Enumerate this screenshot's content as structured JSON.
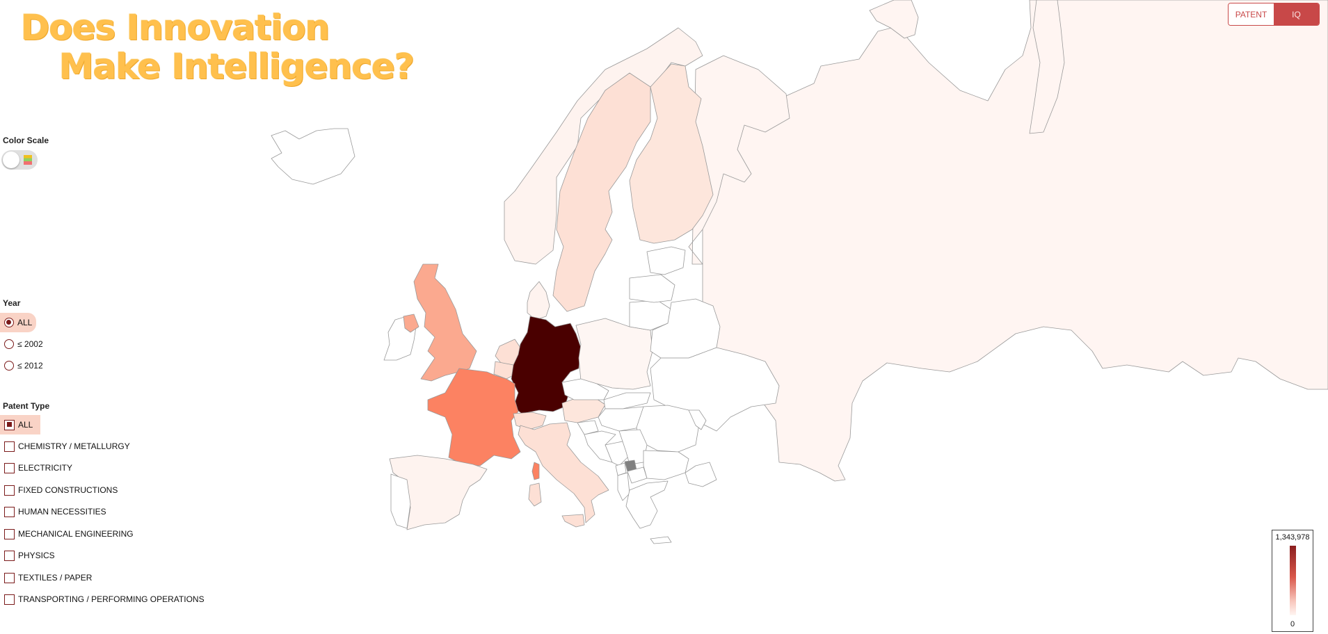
{
  "title": {
    "line1": "Does Innovation",
    "line2": "Make Intelligence?"
  },
  "color_scale": {
    "label": "Color Scale",
    "enabled": false,
    "icon": "palette-swatch-icon"
  },
  "year": {
    "label": "Year",
    "selected": "ALL",
    "options": [
      "ALL",
      "≤ 2002",
      "≤ 2012"
    ]
  },
  "patent_type": {
    "label": "Patent Type",
    "selected": "ALL",
    "options": [
      "ALL",
      "CHEMISTRY / METALLURGY",
      "ELECTRICITY",
      "FIXED CONSTRUCTIONS",
      "HUMAN NECESSITIES",
      "MECHANICAL ENGINEERING",
      "PHYSICS",
      "TEXTILES / PAPER",
      "TRANSPORTING / PERFORMING OPERATIONS"
    ]
  },
  "mode": {
    "options": [
      "PATENT",
      "IQ"
    ],
    "active": "IQ"
  },
  "legend": {
    "max_label": "1,343,978",
    "min_label": "0"
  },
  "colors": {
    "accent": "#c84848",
    "dark": "#4a0000",
    "strong": "#fc8262",
    "medium": "#fba98f",
    "light": "#fde0d5",
    "pale": "#fef3ef",
    "none": "#ffffff",
    "nodata": "#808080",
    "title": "#ffc04d"
  }
}
